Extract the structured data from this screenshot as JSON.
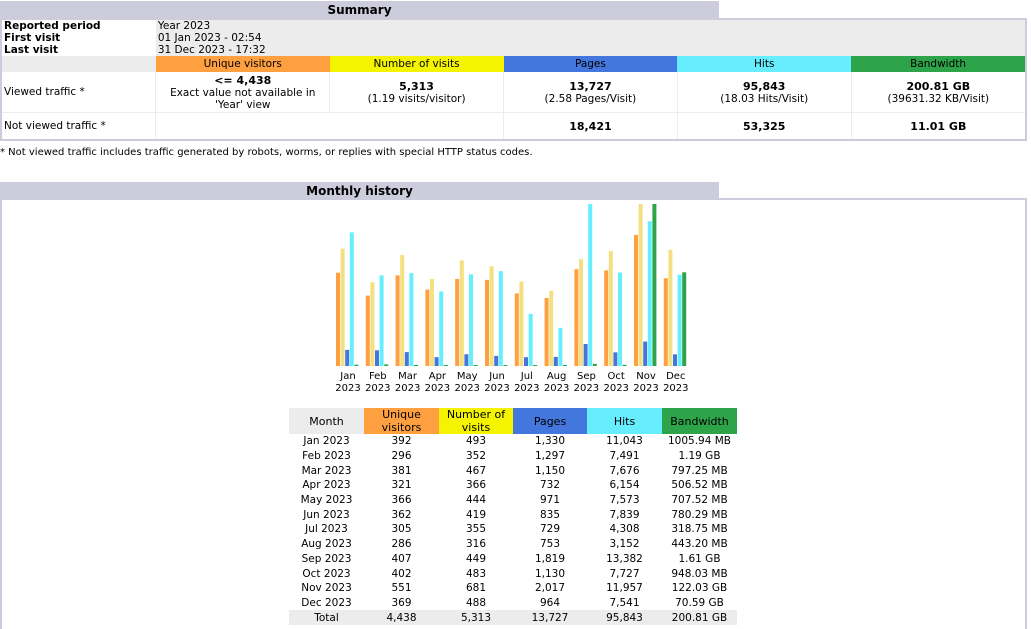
{
  "summary": {
    "title": "Summary",
    "reported_period_label": "Reported period",
    "reported_period_value": "Year 2023",
    "first_visit_label": "First visit",
    "first_visit_value": "01 Jan 2023 - 02:54",
    "last_visit_label": "Last visit",
    "last_visit_value": "31 Dec 2023 - 17:32",
    "headers": {
      "unique_visitors": "Unique visitors",
      "visits": "Number of visits",
      "pages": "Pages",
      "hits": "Hits",
      "bandwidth": "Bandwidth"
    },
    "viewed": {
      "label": "Viewed traffic *",
      "unique_visitors": "<= 4,438",
      "unique_visitors_note": "Exact value not available in 'Year' view",
      "visits": "5,313",
      "visits_note": "(1.19 visits/visitor)",
      "pages": "13,727",
      "pages_note": "(2.58 Pages/Visit)",
      "hits": "95,843",
      "hits_note": "(18.03 Hits/Visit)",
      "bandwidth": "200.81 GB",
      "bandwidth_note": "(39631.32 KB/Visit)"
    },
    "not_viewed": {
      "label": "Not viewed traffic *",
      "pages": "18,421",
      "hits": "53,325",
      "bandwidth": "11.01 GB"
    },
    "footnote": "* Not viewed traffic includes traffic generated by robots, worms, or replies with special HTTP status codes."
  },
  "monthly": {
    "title": "Monthly history",
    "columns": [
      "Month",
      "Unique visitors",
      "Number of visits",
      "Pages",
      "Hits",
      "Bandwidth"
    ],
    "rows": [
      [
        "Jan 2023",
        "392",
        "493",
        "1,330",
        "11,043",
        "1005.94 MB"
      ],
      [
        "Feb 2023",
        "296",
        "352",
        "1,297",
        "7,491",
        "1.19 GB"
      ],
      [
        "Mar 2023",
        "381",
        "467",
        "1,150",
        "7,676",
        "797.25 MB"
      ],
      [
        "Apr 2023",
        "321",
        "366",
        "732",
        "6,154",
        "506.52 MB"
      ],
      [
        "May 2023",
        "366",
        "444",
        "971",
        "7,573",
        "707.52 MB"
      ],
      [
        "Jun 2023",
        "362",
        "419",
        "835",
        "7,839",
        "780.29 MB"
      ],
      [
        "Jul 2023",
        "305",
        "355",
        "729",
        "4,308",
        "318.75 MB"
      ],
      [
        "Aug 2023",
        "286",
        "316",
        "753",
        "3,152",
        "443.20 MB"
      ],
      [
        "Sep 2023",
        "407",
        "449",
        "1,819",
        "13,382",
        "1.61 GB"
      ],
      [
        "Oct 2023",
        "402",
        "483",
        "1,130",
        "7,727",
        "948.03 MB"
      ],
      [
        "Nov 2023",
        "551",
        "681",
        "2,017",
        "11,957",
        "122.03 GB"
      ],
      [
        "Dec 2023",
        "369",
        "488",
        "964",
        "7,541",
        "70.59 GB"
      ]
    ],
    "total": [
      "Total",
      "4,438",
      "5,313",
      "13,727",
      "95,843",
      "200.81 GB"
    ]
  },
  "chart_data": {
    "type": "bar",
    "categories": [
      "Jan",
      "Feb",
      "Mar",
      "Apr",
      "May",
      "Jun",
      "Jul",
      "Aug",
      "Sep",
      "Oct",
      "Nov",
      "Dec"
    ],
    "category_sublabels": [
      "2023",
      "2023",
      "2023",
      "2023",
      "2023",
      "2023",
      "2023",
      "2023",
      "2023",
      "2023",
      "2023",
      "2023"
    ],
    "series": [
      {
        "values": [
          392,
          296,
          381,
          321,
          366,
          362,
          305,
          286,
          407,
          402,
          551,
          369
        ],
        "color": "#ffa040"
      },
      {
        "values": [
          493,
          352,
          467,
          366,
          444,
          419,
          355,
          316,
          449,
          483,
          681,
          488
        ],
        "color": "#f4e080"
      },
      {
        "values": [
          1330,
          1297,
          1150,
          732,
          971,
          835,
          729,
          753,
          1819,
          1130,
          2017,
          964
        ],
        "color": "#4477dd"
      },
      {
        "values": [
          11043,
          7491,
          7676,
          6154,
          7573,
          7839,
          4308,
          3152,
          13382,
          7727,
          11957,
          7541
        ],
        "color": "#66eeff"
      },
      {
        "values_mb": [
          1005.94,
          1218.56,
          797.25,
          506.52,
          707.52,
          780.29,
          318.75,
          443.2,
          1648.64,
          948.03,
          124958.72,
          72284.16
        ],
        "color": "#2ea44a"
      }
    ],
    "grid": false,
    "legend": "none"
  }
}
